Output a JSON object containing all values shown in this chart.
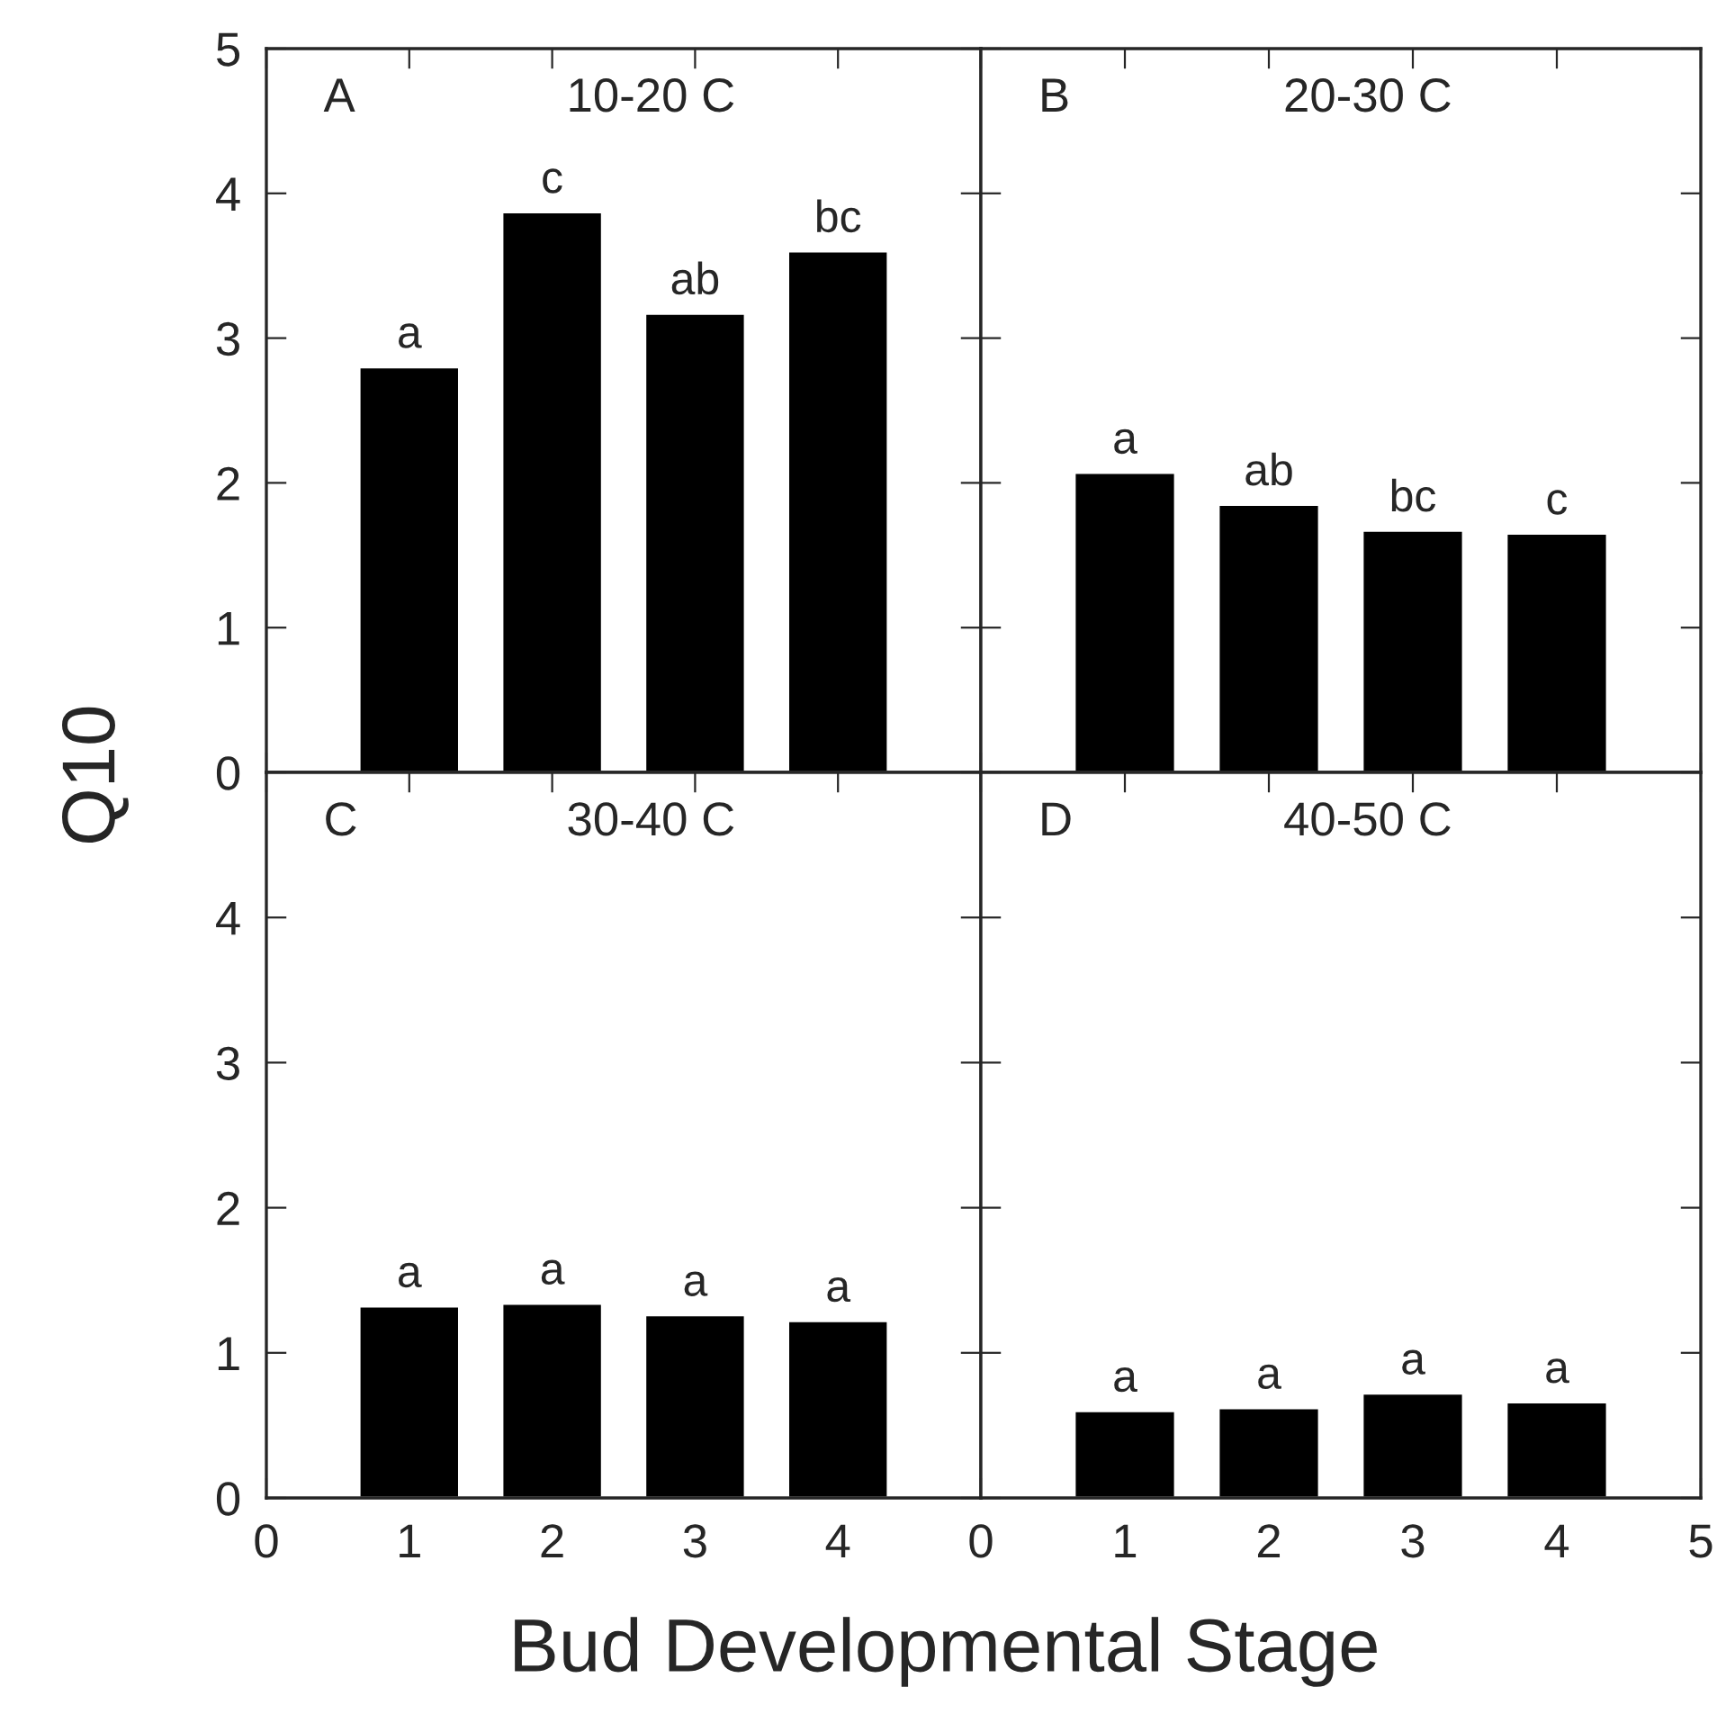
{
  "chart_data": [
    {
      "type": "bar",
      "x": [
        1,
        2,
        3,
        4
      ],
      "values": [
        2.8,
        3.87,
        3.17,
        3.6
      ],
      "color": "#000000",
      "xlim": [
        0,
        5
      ],
      "ylim": [
        0,
        5
      ],
      "xticks": [
        0,
        1,
        2,
        3,
        4,
        5
      ],
      "yticks": [
        0,
        1,
        2,
        3,
        4,
        5
      ],
      "tick_labels": "y",
      "ylabel": "Q10",
      "annotations": [
        "A",
        "10-20 C",
        {
          "text": "a",
          "x": 1,
          "y": 2.8
        },
        {
          "text": "c",
          "x": 2,
          "y": 3.87
        },
        {
          "text": "ab",
          "x": 3,
          "y": 3.17
        },
        {
          "text": "bc",
          "x": 4,
          "y": 3.6
        }
      ]
    },
    {
      "type": "bar",
      "x": [
        1,
        2,
        3,
        4
      ],
      "values": [
        2.07,
        1.85,
        1.67,
        1.65
      ],
      "color": "#000000",
      "xlim": [
        0,
        5
      ],
      "ylim": [
        0,
        5
      ],
      "xticks": [
        0,
        1,
        2,
        3,
        4,
        5
      ],
      "yticks": [
        0,
        1,
        2,
        3,
        4,
        5
      ],
      "tick_labels": false,
      "annotations": [
        "B",
        "20-30 C",
        {
          "text": "a",
          "x": 1,
          "y": 2.07
        },
        {
          "text": "ab",
          "x": 2,
          "y": 1.85
        },
        {
          "text": "bc",
          "x": 3,
          "y": 1.67
        },
        {
          "text": "c",
          "x": 4,
          "y": 1.65
        }
      ]
    },
    {
      "type": "bar",
      "x": [
        1,
        2,
        3,
        4
      ],
      "values": [
        1.32,
        1.34,
        1.26,
        1.22
      ],
      "color": "#000000",
      "xlim": [
        0,
        5
      ],
      "ylim": [
        0,
        5
      ],
      "xticks": [
        0,
        1,
        2,
        3,
        4,
        {
          "value": 5,
          "label": null
        }
      ],
      "yticks": [
        0,
        1,
        2,
        3,
        4,
        {
          "value": 5,
          "label": null
        }
      ],
      "xlabel": "Bud Developmental Stage",
      "annotations": [
        "C",
        "30-40 C",
        {
          "text": "a",
          "x": 1,
          "y": 1.32
        },
        {
          "text": "a",
          "x": 2,
          "y": 1.34
        },
        {
          "text": "a",
          "x": 3,
          "y": 1.26
        },
        {
          "text": "a",
          "x": 4,
          "y": 1.22
        }
      ]
    },
    {
      "type": "bar",
      "x": [
        1,
        2,
        3,
        4
      ],
      "values": [
        0.6,
        0.62,
        0.72,
        0.66
      ],
      "color": "#000000",
      "xlim": [
        0,
        5
      ],
      "ylim": [
        0,
        5
      ],
      "xticks": [
        0,
        1,
        2,
        3,
        4,
        5
      ],
      "yticks": [
        0,
        1,
        2,
        3,
        4,
        5
      ],
      "tick_labels": "x",
      "annotations": [
        "D",
        "40-50 C",
        {
          "text": "a",
          "x": 1,
          "y": 0.6
        },
        {
          "text": "a",
          "x": 2,
          "y": 0.62
        },
        {
          "text": "a",
          "x": 3,
          "y": 0.72
        },
        {
          "text": "a",
          "x": 4,
          "y": 0.66
        }
      ]
    }
  ]
}
